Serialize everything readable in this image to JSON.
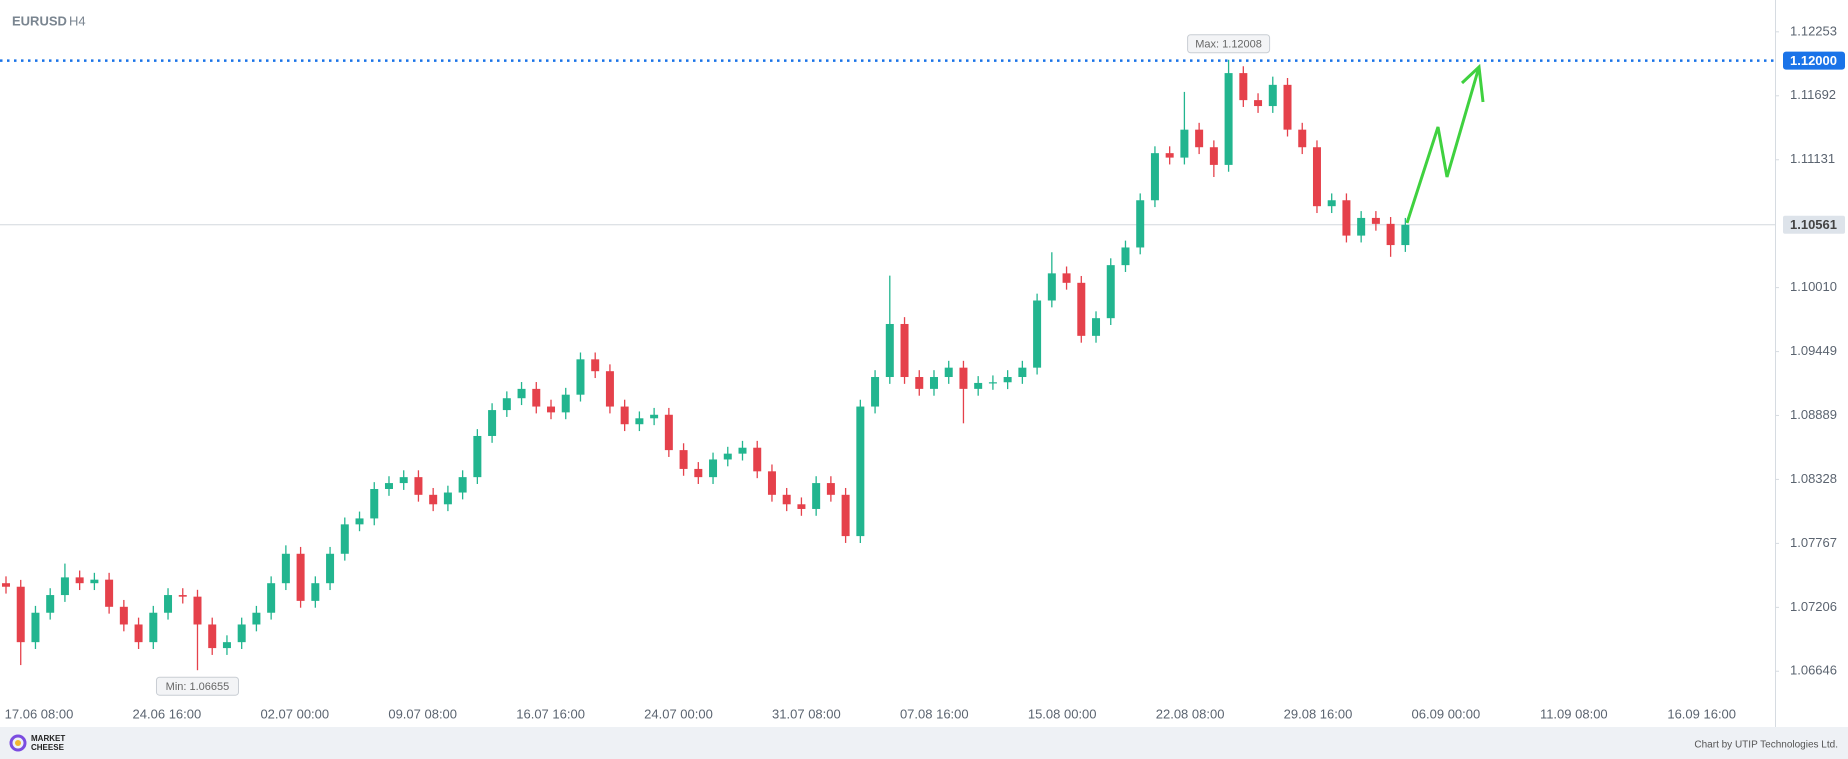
{
  "chart_data": {
    "type": "candlestick",
    "symbol": "EURUSD",
    "timeframe": "H4",
    "x_labels": [
      "17.06 08:00",
      "24.06 16:00",
      "02.07 00:00",
      "09.07 08:00",
      "16.07 16:00",
      "24.07 00:00",
      "31.07 08:00",
      "07.08 16:00",
      "15.08 00:00",
      "22.08 08:00",
      "29.08 16:00",
      "06.09 00:00",
      "11.09 08:00",
      "16.09 16:00"
    ],
    "open": [
      1.07418,
      1.07387,
      1.06901,
      1.07159,
      1.07314,
      1.07469,
      1.07418,
      1.07449,
      1.07211,
      1.07056,
      1.06901,
      1.07159,
      1.07314,
      1.073,
      1.07056,
      1.06849,
      1.06901,
      1.07056,
      1.07159,
      1.07418,
      1.07676,
      1.07263,
      1.07418,
      1.07676,
      1.07934,
      1.07986,
      1.08244,
      1.08296,
      1.08348,
      1.08193,
      1.0811,
      1.08213,
      1.08348,
      1.08709,
      1.08936,
      1.0904,
      1.09122,
      1.08967,
      1.08916,
      1.09071,
      1.09381,
      1.09277,
      1.08967,
      1.08812,
      1.08864,
      1.08895,
      1.08585,
      1.0842,
      1.08348,
      1.08503,
      1.08554,
      1.08606,
      1.08399,
      1.08193,
      1.0811,
      1.08069,
      1.08296,
      1.08193,
      1.07831,
      1.08967,
      1.09226,
      1.09691,
      1.09226,
      1.09122,
      1.09226,
      1.09308,
      1.09122,
      1.09174,
      1.0918,
      1.09226,
      1.09308,
      1.09897,
      1.10135,
      1.10052,
      1.09587,
      1.09742,
      1.10207,
      1.10362,
      1.10776,
      1.11189,
      1.1115,
      1.11395,
      1.11241,
      1.11086,
      1.11891,
      1.11654,
      1.11602,
      1.11788,
      1.11395,
      1.11241,
      1.10724,
      1.10776,
      1.10466,
      1.10621,
      1.10569,
      1.10383
    ],
    "high": [
      1.07478,
      1.07447,
      1.07219,
      1.07374,
      1.0759,
      1.07529,
      1.07509,
      1.07509,
      1.07271,
      1.07116,
      1.07219,
      1.07374,
      1.07374,
      1.0736,
      1.07116,
      1.06961,
      1.07116,
      1.07219,
      1.07478,
      1.0775,
      1.07736,
      1.07478,
      1.07736,
      1.07994,
      1.08046,
      1.08304,
      1.08356,
      1.08408,
      1.08408,
      1.08253,
      1.08273,
      1.08408,
      1.08769,
      1.08996,
      1.091,
      1.09182,
      1.09182,
      1.09027,
      1.09131,
      1.09441,
      1.09441,
      1.09337,
      1.09027,
      1.08924,
      1.08955,
      1.08955,
      1.08645,
      1.0848,
      1.08563,
      1.08614,
      1.08666,
      1.08666,
      1.08459,
      1.08253,
      1.0817,
      1.08356,
      1.08356,
      1.08253,
      1.09027,
      1.09286,
      1.10115,
      1.09751,
      1.09286,
      1.09286,
      1.09368,
      1.09368,
      1.09234,
      1.0924,
      1.09286,
      1.09368,
      1.09957,
      1.1032,
      1.10195,
      1.10112,
      1.09802,
      1.10267,
      1.10422,
      1.10836,
      1.11249,
      1.11249,
      1.11726,
      1.11455,
      1.11301,
      1.12008,
      1.11951,
      1.11714,
      1.1186,
      1.11848,
      1.11455,
      1.11301,
      1.10836,
      1.10836,
      1.10681,
      1.10681,
      1.10629,
      1.10621
    ],
    "low": [
      1.07327,
      1.067,
      1.06841,
      1.07099,
      1.07254,
      1.07358,
      1.07358,
      1.07151,
      1.06996,
      1.06841,
      1.06841,
      1.07099,
      1.0724,
      1.06655,
      1.06789,
      1.06789,
      1.06841,
      1.06996,
      1.07099,
      1.07358,
      1.07203,
      1.07203,
      1.07358,
      1.07616,
      1.07874,
      1.07926,
      1.08184,
      1.08236,
      1.08133,
      1.0805,
      1.0805,
      1.08153,
      1.08288,
      1.08649,
      1.08876,
      1.0898,
      1.08907,
      1.08856,
      1.08856,
      1.09011,
      1.09217,
      1.08907,
      1.08752,
      1.08752,
      1.08804,
      1.08525,
      1.0836,
      1.08288,
      1.08288,
      1.08443,
      1.08494,
      1.08339,
      1.08133,
      1.0805,
      1.08009,
      1.08009,
      1.08133,
      1.07771,
      1.07771,
      1.08907,
      1.09166,
      1.09166,
      1.09062,
      1.09062,
      1.09166,
      1.0882,
      1.09062,
      1.09114,
      1.0912,
      1.09166,
      1.09248,
      1.09837,
      1.09992,
      1.09527,
      1.09527,
      1.09682,
      1.10147,
      1.10302,
      1.10716,
      1.1109,
      1.1109,
      1.11181,
      1.1098,
      1.11026,
      1.11594,
      1.11542,
      1.11542,
      1.11335,
      1.11181,
      1.10664,
      1.10664,
      1.10406,
      1.10406,
      1.10509,
      1.1028,
      1.10323
    ],
    "close": [
      1.07387,
      1.06901,
      1.07159,
      1.07314,
      1.07469,
      1.07418,
      1.07449,
      1.07211,
      1.07056,
      1.06901,
      1.07159,
      1.07314,
      1.073,
      1.07056,
      1.06849,
      1.06901,
      1.07056,
      1.07159,
      1.07418,
      1.07676,
      1.07263,
      1.07418,
      1.07676,
      1.07934,
      1.07986,
      1.08244,
      1.08296,
      1.08348,
      1.08193,
      1.0811,
      1.08213,
      1.08348,
      1.08709,
      1.08936,
      1.0904,
      1.09122,
      1.08967,
      1.08916,
      1.09071,
      1.09381,
      1.09277,
      1.08967,
      1.08812,
      1.08864,
      1.08895,
      1.08585,
      1.0842,
      1.08348,
      1.08503,
      1.08554,
      1.08606,
      1.08399,
      1.08193,
      1.0811,
      1.08069,
      1.08296,
      1.08193,
      1.07831,
      1.08967,
      1.09226,
      1.09691,
      1.09226,
      1.09122,
      1.09226,
      1.09308,
      1.09122,
      1.09174,
      1.0918,
      1.09226,
      1.09308,
      1.09897,
      1.10135,
      1.10052,
      1.09587,
      1.09742,
      1.10207,
      1.10362,
      1.10776,
      1.11189,
      1.1115,
      1.11395,
      1.11241,
      1.11086,
      1.11891,
      1.11654,
      1.11602,
      1.11788,
      1.11395,
      1.11241,
      1.10724,
      1.10776,
      1.10466,
      1.10621,
      1.10569,
      1.10383,
      1.10561
    ],
    "up_color": "#22b58f",
    "down_color": "#e5414b",
    "ylim": [
      1.06385,
      1.12532
    ],
    "yticks": [
      1.12253,
      1.11692,
      1.11131,
      {
        "value": 1.1001,
        "label": "1.10010"
      },
      1.09449,
      1.08889,
      1.08328,
      1.07767,
      1.07206,
      1.06646
    ],
    "current_price": {
      "value": 1.10561,
      "label": "1.10561"
    },
    "level": {
      "value": 1.12,
      "label": "1.12000",
      "color": "#1a73e8"
    },
    "max_label": "Max: 1.12008",
    "min_label": "Min: 1.06655",
    "logo": [
      "MARKET",
      "CHEESE"
    ],
    "attribution": "Chart by UTIP Technologies Ltd."
  }
}
